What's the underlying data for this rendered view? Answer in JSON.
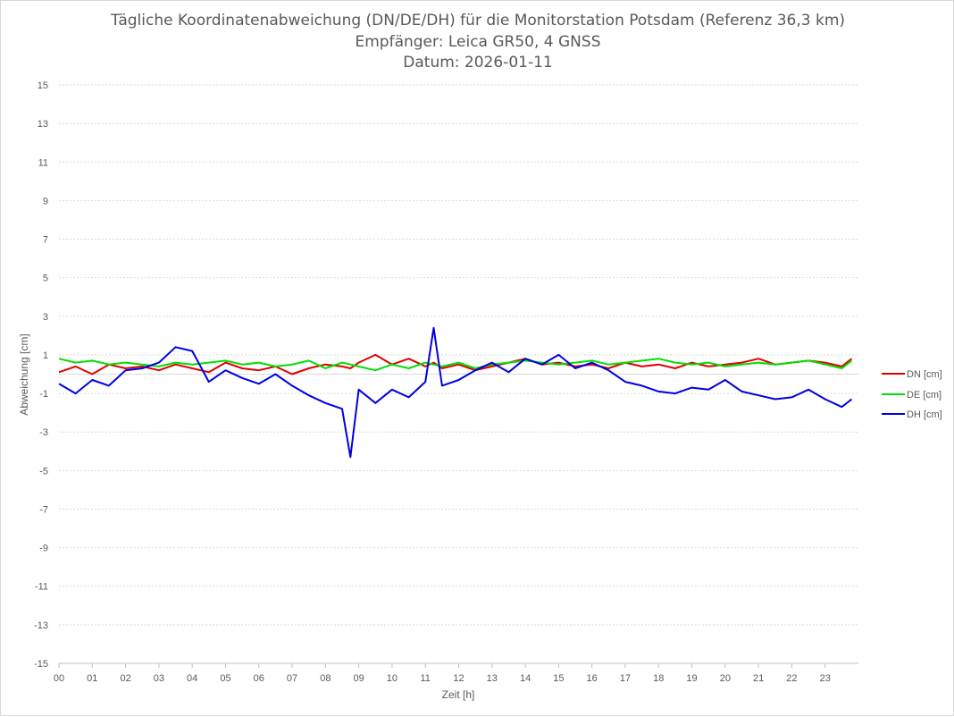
{
  "chart_data": {
    "type": "line",
    "title": "Tägliche Koordinatenabweichung (DN/DE/DH) für die Monitorstation Potsdam (Referenz 36,3 km)",
    "subtitle": "Empfänger: Leica GR50, 4 GNSS",
    "date_label": "Datum: 2026-01-11",
    "xlabel": "Zeit [h]",
    "ylabel": "Abweichung [cm]",
    "xlim": [
      0,
      24
    ],
    "ylim": [
      -15,
      15
    ],
    "x_ticks": [
      "00",
      "01",
      "02",
      "03",
      "04",
      "05",
      "06",
      "07",
      "08",
      "09",
      "10",
      "11",
      "12",
      "13",
      "14",
      "15",
      "16",
      "17",
      "18",
      "19",
      "20",
      "21",
      "22",
      "23"
    ],
    "y_ticks": [
      "15",
      "13",
      "11",
      "9",
      "7",
      "5",
      "3",
      "1",
      "-1",
      "-3",
      "-5",
      "-7",
      "-9",
      "-11",
      "-13",
      "-15"
    ],
    "grid": true,
    "legend_position": "right",
    "x": [
      0.0,
      0.5,
      1.0,
      1.5,
      2.0,
      2.5,
      3.0,
      3.5,
      4.0,
      4.5,
      5.0,
      5.5,
      6.0,
      6.5,
      7.0,
      7.5,
      8.0,
      8.5,
      8.75,
      9.0,
      9.5,
      10.0,
      10.5,
      11.0,
      11.25,
      11.5,
      12.0,
      12.5,
      13.0,
      13.5,
      14.0,
      14.5,
      15.0,
      15.5,
      16.0,
      16.5,
      17.0,
      17.5,
      18.0,
      18.5,
      19.0,
      19.5,
      20.0,
      20.5,
      21.0,
      21.5,
      22.0,
      22.5,
      23.0,
      23.5,
      23.8
    ],
    "series": [
      {
        "name": "DN [cm]",
        "color": "#e00000",
        "values": [
          0.1,
          0.4,
          0.0,
          0.5,
          0.3,
          0.4,
          0.2,
          0.5,
          0.3,
          0.1,
          0.6,
          0.3,
          0.2,
          0.4,
          0.0,
          0.3,
          0.5,
          0.4,
          0.3,
          0.6,
          1.0,
          0.5,
          0.8,
          0.4,
          0.6,
          0.3,
          0.5,
          0.2,
          0.4,
          0.6,
          0.8,
          0.5,
          0.6,
          0.4,
          0.5,
          0.3,
          0.6,
          0.4,
          0.5,
          0.3,
          0.6,
          0.4,
          0.5,
          0.6,
          0.8,
          0.5,
          0.6,
          0.7,
          0.6,
          0.4,
          0.8
        ]
      },
      {
        "name": "DE [cm]",
        "color": "#00e000",
        "values": [
          0.8,
          0.6,
          0.7,
          0.5,
          0.6,
          0.5,
          0.4,
          0.6,
          0.5,
          0.6,
          0.7,
          0.5,
          0.6,
          0.4,
          0.5,
          0.7,
          0.3,
          0.6,
          0.5,
          0.4,
          0.2,
          0.5,
          0.3,
          0.6,
          0.5,
          0.4,
          0.6,
          0.3,
          0.5,
          0.6,
          0.7,
          0.6,
          0.5,
          0.6,
          0.7,
          0.5,
          0.6,
          0.7,
          0.8,
          0.6,
          0.5,
          0.6,
          0.4,
          0.5,
          0.6,
          0.5,
          0.6,
          0.7,
          0.5,
          0.3,
          0.7
        ]
      },
      {
        "name": "DH [cm]",
        "color": "#0000e0",
        "values": [
          -0.5,
          -1.0,
          -0.3,
          -0.6,
          0.2,
          0.3,
          0.6,
          1.4,
          1.2,
          -0.4,
          0.2,
          -0.2,
          -0.5,
          0.0,
          -0.6,
          -1.1,
          -1.5,
          -1.8,
          -4.3,
          -0.8,
          -1.5,
          -0.8,
          -1.2,
          -0.4,
          2.4,
          -0.6,
          -0.3,
          0.2,
          0.6,
          0.1,
          0.8,
          0.5,
          1.0,
          0.3,
          0.6,
          0.2,
          -0.4,
          -0.6,
          -0.9,
          -1.0,
          -0.7,
          -0.8,
          -0.3,
          -0.9,
          -1.1,
          -1.3,
          -1.2,
          -0.8,
          -1.3,
          -1.7,
          -1.3
        ]
      }
    ]
  }
}
